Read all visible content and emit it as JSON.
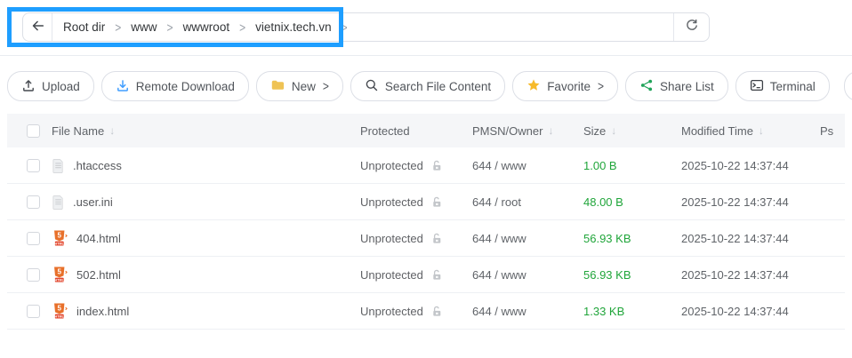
{
  "pathbar": {
    "breadcrumb_items": [
      "Root dir",
      "www",
      "wwwroot",
      "vietnix.tech.vn"
    ],
    "separator": ">"
  },
  "toolbar": {
    "upload": "Upload",
    "remote_download": "Remote Download",
    "new": "New",
    "search_file_content": "Search File Content",
    "favorite": "Favorite",
    "share_list": "Share List",
    "terminal": "Terminal",
    "root_dir": "Root dir",
    "dropdown_chevron": ">"
  },
  "table": {
    "sort_arrow": "↓",
    "headers": {
      "file_name": "File Name",
      "protected": "Protected",
      "pmsn_owner": "PMSN/Owner",
      "size": "Size",
      "modified_time": "Modified Time",
      "ps": "Ps"
    },
    "rows": [
      {
        "icon": "file-generic",
        "name": ".htaccess",
        "protected": "Unprotected",
        "pmsn_owner": "644 / www",
        "size": "1.00 B",
        "modified_time": "2025-10-22 14:37:44",
        "ps": ""
      },
      {
        "icon": "file-generic",
        "name": ".user.ini",
        "protected": "Unprotected",
        "pmsn_owner": "644 / root",
        "size": "48.00 B",
        "modified_time": "2025-10-22 14:37:44",
        "ps": ""
      },
      {
        "icon": "file-html",
        "name": "404.html",
        "protected": "Unprotected",
        "pmsn_owner": "644 / www",
        "size": "56.93 KB",
        "modified_time": "2025-10-22 14:37:44",
        "ps": ""
      },
      {
        "icon": "file-html",
        "name": "502.html",
        "protected": "Unprotected",
        "pmsn_owner": "644 / www",
        "size": "56.93 KB",
        "modified_time": "2025-10-22 14:37:44",
        "ps": ""
      },
      {
        "icon": "file-html",
        "name": "index.html",
        "protected": "Unprotected",
        "pmsn_owner": "644 / www",
        "size": "1.33 KB",
        "modified_time": "2025-10-22 14:37:44",
        "ps": ""
      }
    ]
  },
  "colors": {
    "annotation_blue": "#1e9eff",
    "size_green": "#20a53a",
    "folder_yellow": "#efc355",
    "star_yellow": "#f7ba2a",
    "share_green": "#21a35a",
    "download_blue": "#409eff"
  }
}
